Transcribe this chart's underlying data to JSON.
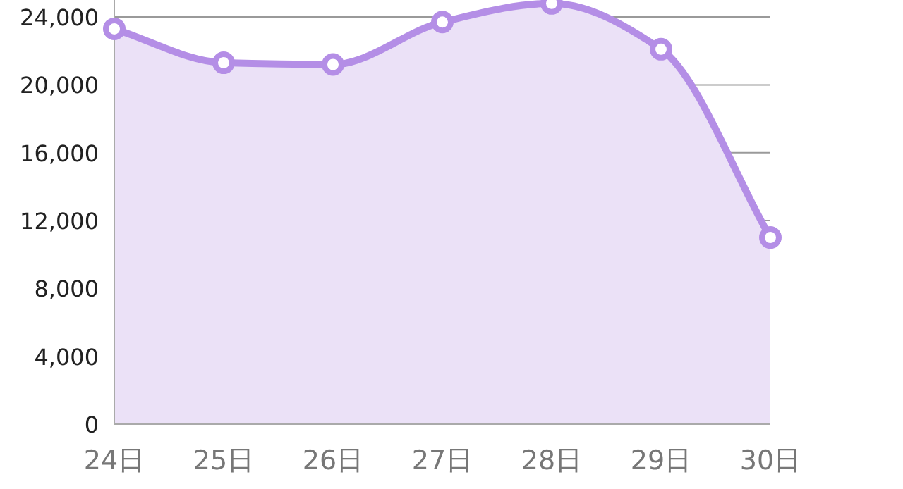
{
  "chart_data": {
    "type": "area",
    "categories": [
      "24日",
      "25日",
      "26日",
      "27日",
      "28日",
      "29日",
      "30日"
    ],
    "series": [
      {
        "color": "#b48ee6",
        "values": [
          23300,
          21300,
          21200,
          23700,
          24800,
          22100,
          11000
        ]
      }
    ],
    "ylim": [
      0,
      25000
    ],
    "yticks": [
      {
        "value": 0,
        "label": "0"
      },
      {
        "value": 4000,
        "label": "4,000"
      },
      {
        "value": 8000,
        "label": "8,000"
      },
      {
        "value": 12000,
        "label": "12,000"
      },
      {
        "value": 16000,
        "label": "16,000"
      },
      {
        "value": 20000,
        "label": "20,000"
      },
      {
        "value": 24000,
        "label": "24,000"
      }
    ],
    "grid": "y",
    "marker": "circle"
  }
}
